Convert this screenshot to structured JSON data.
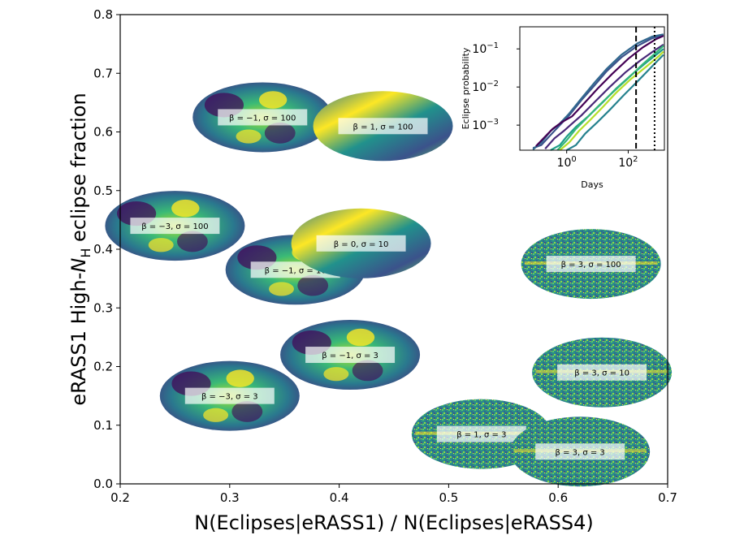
{
  "chart_data": {
    "type": "scatter",
    "xlabel": "N(Eclipses|eRASS1) / N(Eclipses|eRASS4)",
    "ylabel_prefix": "eRASS1 High-",
    "ylabel_math": "N",
    "ylabel_sub": "H",
    "ylabel_suffix": " eclipse fraction",
    "xlim": [
      0.2,
      0.7
    ],
    "ylim": [
      0.0,
      0.8
    ],
    "xticks": [
      "0.2",
      "0.3",
      "0.4",
      "0.5",
      "0.6",
      "0.7"
    ],
    "yticks": [
      "0.0",
      "0.1",
      "0.2",
      "0.3",
      "0.4",
      "0.5",
      "0.6",
      "0.7",
      "0.8"
    ],
    "colors": {
      "dark": "#440154",
      "mid": "#21918c",
      "yellow": "#fde725",
      "teal": "#31688e"
    },
    "points": [
      {
        "label": "β = −1, σ = 100",
        "x": 0.33,
        "y": 0.625,
        "style": "smooth"
      },
      {
        "label": "β = 1, σ = 100",
        "x": 0.44,
        "y": 0.61,
        "style": "medium"
      },
      {
        "label": "β = −3, σ = 100",
        "x": 0.25,
        "y": 0.44,
        "style": "smooth"
      },
      {
        "label": "β = −1, σ = 10",
        "x": 0.36,
        "y": 0.365,
        "style": "smooth"
      },
      {
        "label": "β = 0, σ = 10",
        "x": 0.42,
        "y": 0.41,
        "style": "medium"
      },
      {
        "label": "β = 3, σ = 100",
        "x": 0.63,
        "y": 0.375,
        "style": "noisy"
      },
      {
        "label": "β = −1, σ = 3",
        "x": 0.41,
        "y": 0.22,
        "style": "smooth"
      },
      {
        "label": "β = −3, σ = 3",
        "x": 0.3,
        "y": 0.15,
        "style": "smooth"
      },
      {
        "label": "β = 3, σ = 10",
        "x": 0.64,
        "y": 0.19,
        "style": "noisy"
      },
      {
        "label": "β = 1, σ = 3",
        "x": 0.53,
        "y": 0.085,
        "style": "noisy"
      },
      {
        "label": "β = 3, σ = 3",
        "x": 0.62,
        "y": 0.055,
        "style": "noisy"
      }
    ],
    "inset": {
      "type": "line",
      "xlabel": "Days",
      "ylabel": "Eclipse probability",
      "xscale": "log",
      "yscale": "log",
      "xticks": [
        {
          "base": "10",
          "exp": "0",
          "value": 1
        },
        {
          "base": "10",
          "exp": "2",
          "value": 100
        }
      ],
      "yticks": [
        {
          "base": "10",
          "exp": "−3",
          "value": 0.001
        },
        {
          "base": "10",
          "exp": "−2",
          "value": 0.01
        },
        {
          "base": "10",
          "exp": "−1",
          "value": 0.1
        }
      ],
      "xlim": [
        0.03,
        1500
      ],
      "ylim": [
        0.00022,
        0.38
      ],
      "vlines": [
        {
          "x": 180,
          "style": "dashed"
        },
        {
          "x": 720,
          "style": "dotted"
        }
      ],
      "series": [
        {
          "color": "#3b528b",
          "x": [
            0.08,
            0.15,
            0.3,
            0.6,
            1.2,
            3,
            8,
            20,
            60,
            200,
            600,
            1400
          ],
          "y": [
            0.00025,
            0.0003,
            0.00055,
            0.001,
            0.0018,
            0.0045,
            0.011,
            0.026,
            0.06,
            0.12,
            0.19,
            0.23
          ]
        },
        {
          "color": "#31688e",
          "x": [
            0.08,
            0.15,
            0.3,
            0.6,
            1.2,
            3,
            8,
            20,
            60,
            200,
            600,
            1400
          ],
          "y": [
            0.00023,
            0.00035,
            0.0007,
            0.0011,
            0.002,
            0.005,
            0.013,
            0.03,
            0.07,
            0.14,
            0.21,
            0.24
          ]
        },
        {
          "color": "#440154",
          "x": [
            0.1,
            0.2,
            0.35,
            0.7,
            1.5,
            4,
            10,
            30,
            100,
            300,
            800,
            1400
          ],
          "y": [
            0.00028,
            0.0005,
            0.0008,
            0.0012,
            0.0017,
            0.004,
            0.009,
            0.022,
            0.055,
            0.11,
            0.18,
            0.22
          ]
        },
        {
          "color": "#482878",
          "x": [
            0.2,
            0.4,
            0.8,
            1.5,
            3,
            8,
            25,
            80,
            250,
            700,
            1400
          ],
          "y": [
            0.00024,
            0.00045,
            0.0007,
            0.0011,
            0.0018,
            0.004,
            0.01,
            0.024,
            0.05,
            0.09,
            0.13
          ]
        },
        {
          "color": "#1f9e89",
          "x": [
            0.3,
            0.6,
            1,
            2,
            5,
            15,
            40,
            120,
            400,
            1000,
            1400
          ],
          "y": [
            0.00022,
            0.0003,
            0.0005,
            0.0009,
            0.0017,
            0.004,
            0.009,
            0.02,
            0.045,
            0.08,
            0.1
          ]
        },
        {
          "color": "#35b779",
          "x": [
            0.5,
            1,
            2,
            4,
            10,
            30,
            100,
            300,
            800,
            1400
          ],
          "y": [
            0.00022,
            0.0004,
            0.0008,
            0.0014,
            0.003,
            0.007,
            0.017,
            0.04,
            0.08,
            0.12
          ]
        },
        {
          "color": "#b5de2b",
          "x": [
            0.6,
            1.2,
            2.5,
            6,
            15,
            40,
            120,
            400,
            1000,
            1400
          ],
          "y": [
            0.00022,
            0.00035,
            0.0007,
            0.0014,
            0.003,
            0.007,
            0.016,
            0.035,
            0.065,
            0.085
          ]
        },
        {
          "color": "#26828e",
          "x": [
            1,
            2,
            4,
            10,
            25,
            70,
            200,
            600,
            1400
          ],
          "y": [
            0.00022,
            0.0003,
            0.0006,
            0.0012,
            0.0025,
            0.006,
            0.014,
            0.035,
            0.07
          ]
        }
      ]
    }
  }
}
